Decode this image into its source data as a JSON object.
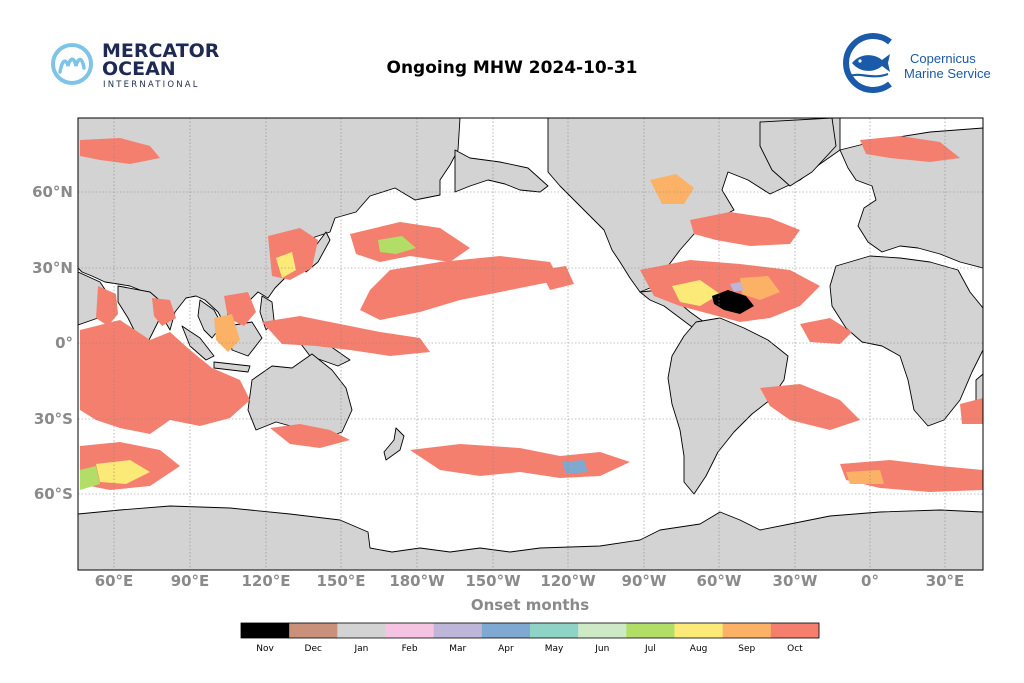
{
  "title": "Ongoing MHW 2024-10-31",
  "logo_left": {
    "line1": "MERCATOR",
    "line2": "OCEAN",
    "line3": "INTERNATIONAL"
  },
  "logo_right": {
    "line1": "Copernicus",
    "line2": "Marine Service"
  },
  "xlabel": "Onset months",
  "lon_ticks": [
    "60°E",
    "90°E",
    "120°E",
    "150°E",
    "180°W",
    "150°W",
    "120°W",
    "90°W",
    "60°W",
    "30°W",
    "0°",
    "30°E"
  ],
  "lat_ticks": [
    "60°N",
    "30°N",
    "0°",
    "30°S",
    "60°S"
  ],
  "colorbar": [
    {
      "label": "Nov",
      "color": "#000000"
    },
    {
      "label": "Dec",
      "color": "#c9907a"
    },
    {
      "label": "Jan",
      "color": "#d3d3d3"
    },
    {
      "label": "Feb",
      "color": "#f5c4e3"
    },
    {
      "label": "Mar",
      "color": "#bdb6d9"
    },
    {
      "label": "Apr",
      "color": "#7fa9d1"
    },
    {
      "label": "May",
      "color": "#8fd3c7"
    },
    {
      "label": "Jun",
      "color": "#cdeac5"
    },
    {
      "label": "Jul",
      "color": "#b2de67"
    },
    {
      "label": "Aug",
      "color": "#fbe978"
    },
    {
      "label": "Sep",
      "color": "#fbb266"
    },
    {
      "label": "Oct",
      "color": "#f57f6e"
    }
  ],
  "colors": {
    "land": "#d3d3d3",
    "ocean": "#ffffff",
    "tick_text": "#8a8a8a",
    "grid": "#888888"
  }
}
